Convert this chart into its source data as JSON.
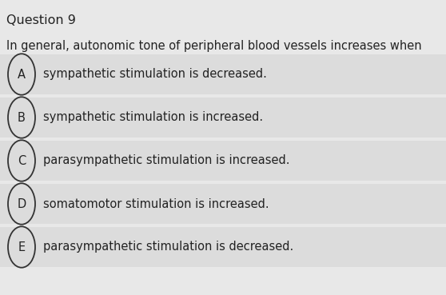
{
  "title": "Question 9",
  "question": "In general, autonomic tone of peripheral blood vessels increases when",
  "options": [
    {
      "label": "A",
      "text": "sympathetic stimulation is decreased."
    },
    {
      "label": "B",
      "text": "sympathetic stimulation is increased."
    },
    {
      "label": "C",
      "text": "parasympathetic stimulation is increased."
    },
    {
      "label": "D",
      "text": "somatomotor stimulation is increased."
    },
    {
      "label": "E",
      "text": "parasympathetic stimulation is decreased."
    }
  ],
  "bg_color": "#e8e8e8",
  "option_bg_color": "#dcdcdc",
  "separator_color": "#c8c8c8",
  "title_fontsize": 11.5,
  "question_fontsize": 10.5,
  "option_fontsize": 10.5,
  "text_color": "#222222",
  "circle_edge_color": "#333333",
  "title_fontweight": "normal"
}
